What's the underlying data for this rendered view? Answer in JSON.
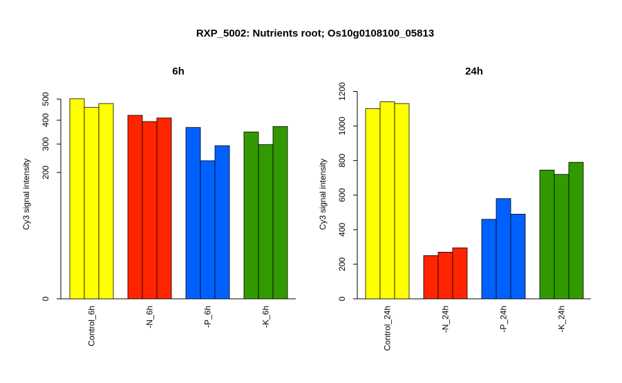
{
  "main_title": "RXP_5002: Nutrients root; Os10g0108100_05813",
  "chart_data": [
    {
      "type": "bar",
      "title": "6h",
      "ylabel": "Cy3 signal intensity",
      "xlabel": "",
      "y_scale": "sqrt",
      "ylim": [
        0,
        548
      ],
      "yticks": [
        0,
        200,
        300,
        400,
        500
      ],
      "grid": false,
      "legend": "none",
      "categories": [
        "Control_6h",
        "-N_6h",
        "-P_6h",
        "-K_6h"
      ],
      "colors": [
        "#ffff00",
        "#ff2500",
        "#0061ff",
        "#339900"
      ],
      "values": [
        [
          502,
          459,
          478
        ],
        [
          422,
          394,
          410
        ],
        [
          368,
          239,
          294
        ],
        [
          349,
          298,
          372
        ]
      ]
    },
    {
      "type": "bar",
      "title": "24h",
      "ylabel": "Cy3 signal intensity",
      "xlabel": "",
      "y_scale": "linear",
      "ylim": [
        0,
        1210
      ],
      "yticks": [
        0,
        200,
        400,
        600,
        800,
        1000,
        1200
      ],
      "grid": false,
      "legend": "none",
      "categories": [
        "Control_24h",
        "-N_24h",
        "-P_24h",
        "-K_24h"
      ],
      "colors": [
        "#ffff00",
        "#ff2500",
        "#0061ff",
        "#339900"
      ],
      "values": [
        [
          1100,
          1140,
          1130
        ],
        [
          250,
          270,
          295
        ],
        [
          460,
          580,
          490
        ],
        [
          745,
          720,
          790
        ]
      ]
    }
  ]
}
